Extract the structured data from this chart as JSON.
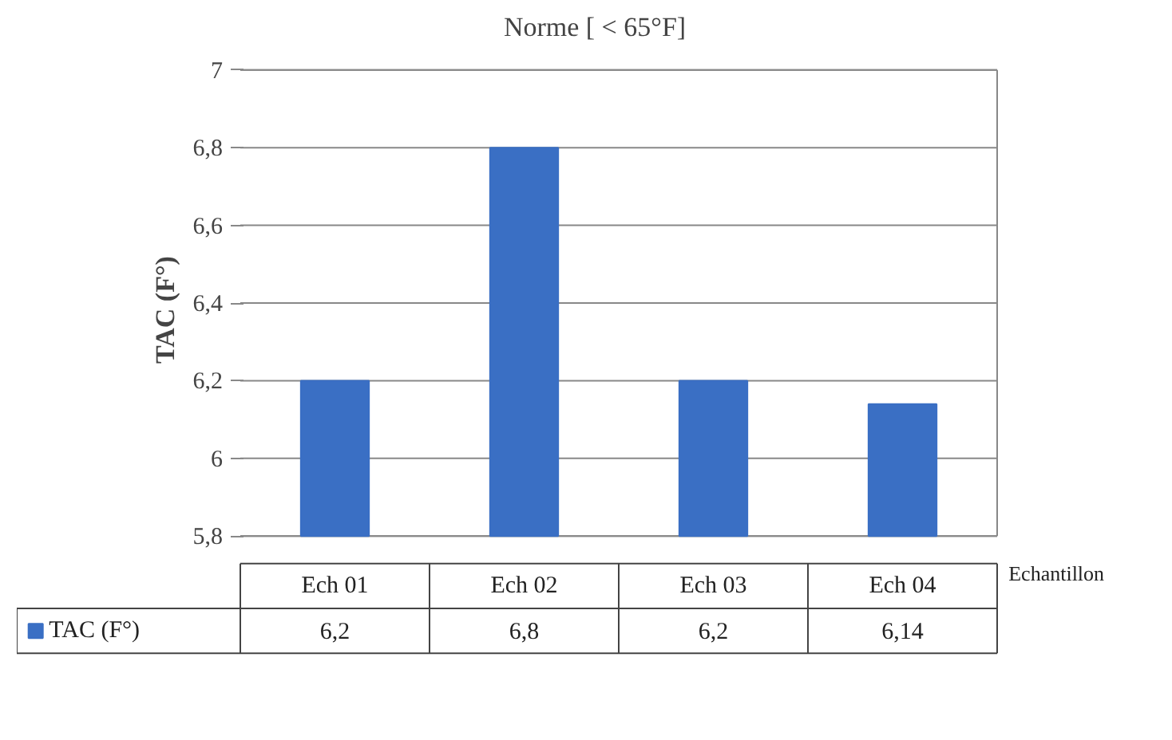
{
  "chart_data": {
    "type": "bar",
    "title": "Norme [ < 65°F]",
    "ylabel": "TAC   (F°)",
    "xlabel": "Echantillon",
    "categories": [
      "Ech 01",
      "Ech 02",
      "Ech 03",
      "Ech 04"
    ],
    "series": [
      {
        "name": "TAC  (F°)",
        "color": "#3a6fc4",
        "values": [
          6.2,
          6.8,
          6.2,
          6.14
        ],
        "value_labels": [
          "6,2",
          "6,8",
          "6,2",
          "6,14"
        ]
      }
    ],
    "ylim": [
      5.8,
      7
    ],
    "yticks": [
      {
        "value": 5.8,
        "label": "5,8"
      },
      {
        "value": 6,
        "label": "6"
      },
      {
        "value": 6.2,
        "label": "6,2"
      },
      {
        "value": 6.4,
        "label": "6,4"
      },
      {
        "value": 6.6,
        "label": "6,6"
      },
      {
        "value": 6.8,
        "label": "6,8"
      },
      {
        "value": 7,
        "label": "7"
      }
    ],
    "grid": "y",
    "legend": "bottom"
  }
}
